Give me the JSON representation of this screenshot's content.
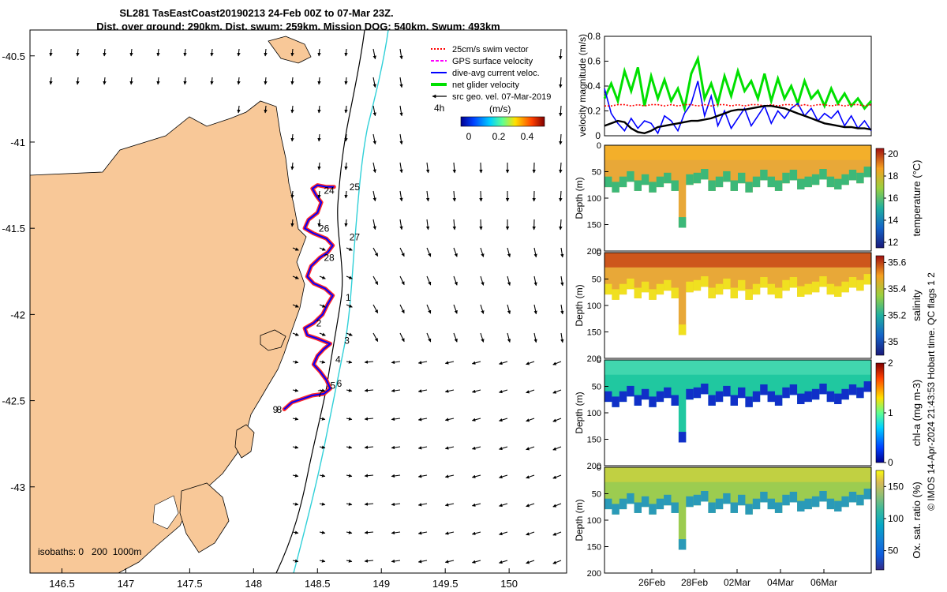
{
  "title": {
    "line1": "SL281 TasEastCoast20190213 24-Feb 00Z to 07-Mar 23Z.",
    "line2": "Dist. over ground: 290km. Dist. swum: 259km. Mission DOG: 540km. Swum: 493km"
  },
  "footer_credit": "© IMOS 14-Apr-2024 21:43:53 Hobart time. QC flags 1  2",
  "colors": {
    "land": "#f8c898",
    "swim_vector": "#ff0000",
    "gps_velocity": "#ff00ff",
    "dive_avg": "#0000ff",
    "net_glider": "#00e000",
    "src_geo": "#000000",
    "isobath_200": "#000000",
    "isobath_1000": "#30d0d8",
    "track": "#ff2a2a"
  },
  "chart_data": [
    {
      "type": "map",
      "title": "SL281 TasEastCoast20190213 24-Feb 00Z to 07-Mar 23Z.",
      "xlim": [
        146.25,
        150.45
      ],
      "ylim": [
        -43.5,
        -40.35
      ],
      "xticks": [
        146.5,
        147,
        147.5,
        148,
        148.5,
        149,
        149.5,
        150
      ],
      "xtick_labels": [
        "146.5",
        "147",
        "147.5",
        "148",
        "148.5",
        "149",
        "149.5",
        "150"
      ],
      "yticks": [
        -40.5,
        -41,
        -41.5,
        -42,
        -42.5,
        -43
      ],
      "ytick_labels": [
        "-40.5",
        "-41",
        "-41.5",
        "-42",
        "-42.5",
        "-43"
      ],
      "legend": [
        {
          "label": "25cm/s swim vector",
          "color": "#ff0000",
          "style": "dotted"
        },
        {
          "label": "GPS surface velocity",
          "color": "#ff00ff",
          "style": "dashed"
        },
        {
          "label": "dive-avg current veloc.",
          "color": "#0000ff",
          "style": "solid"
        },
        {
          "label": "net glider velocity",
          "color": "#00e000",
          "style": "thick"
        },
        {
          "label": "src geo. vel. 07-Mar-2019",
          "color": "#000000",
          "style": "arrow"
        }
      ],
      "time_label": "4h",
      "colorbar": {
        "title": "(m/s)",
        "ticks": [
          "0",
          "0.2",
          "0.4"
        ],
        "range": [
          -0.05,
          0.55
        ]
      },
      "isobaths_label": "isobaths: 0   200  1000m",
      "day_labels": [
        {
          "label": "25",
          "lon": 148.75,
          "lat": -41.28
        },
        {
          "label": "24",
          "lon": 148.55,
          "lat": -41.3
        },
        {
          "label": "26",
          "lon": 148.51,
          "lat": -41.52
        },
        {
          "label": "27",
          "lon": 148.75,
          "lat": -41.57
        },
        {
          "label": "28",
          "lon": 148.55,
          "lat": -41.69
        },
        {
          "label": "1",
          "lon": 148.72,
          "lat": -41.92
        },
        {
          "label": "2",
          "lon": 148.49,
          "lat": -42.07
        },
        {
          "label": "3",
          "lon": 148.71,
          "lat": -42.17
        },
        {
          "label": "4",
          "lon": 148.64,
          "lat": -42.28
        },
        {
          "label": "5",
          "lon": 148.6,
          "lat": -42.43
        },
        {
          "label": "6",
          "lon": 148.65,
          "lat": -42.42
        },
        {
          "label": "7",
          "lon": 148.5,
          "lat": -42.48
        },
        {
          "label": "8",
          "lon": 148.18,
          "lat": -42.57
        },
        {
          "label": "9",
          "lon": 148.15,
          "lat": -42.57
        }
      ],
      "track": [
        [
          148.24,
          -42.55
        ],
        [
          148.3,
          -42.51
        ],
        [
          148.38,
          -42.49
        ],
        [
          148.46,
          -42.47
        ],
        [
          148.55,
          -42.46
        ],
        [
          148.6,
          -42.43
        ],
        [
          148.57,
          -42.38
        ],
        [
          148.52,
          -42.33
        ],
        [
          148.47,
          -42.29
        ],
        [
          148.5,
          -42.24
        ],
        [
          148.55,
          -42.2
        ],
        [
          148.6,
          -42.17
        ],
        [
          148.5,
          -42.14
        ],
        [
          148.42,
          -42.12
        ],
        [
          148.4,
          -42.08
        ],
        [
          148.47,
          -42.05
        ],
        [
          148.54,
          -42.0
        ],
        [
          148.58,
          -41.94
        ],
        [
          148.62,
          -41.89
        ],
        [
          148.56,
          -41.85
        ],
        [
          148.47,
          -41.82
        ],
        [
          148.42,
          -41.78
        ],
        [
          148.45,
          -41.72
        ],
        [
          148.52,
          -41.67
        ],
        [
          148.58,
          -41.64
        ],
        [
          148.62,
          -41.6
        ],
        [
          148.57,
          -41.56
        ],
        [
          148.47,
          -41.53
        ],
        [
          148.4,
          -41.5
        ],
        [
          148.43,
          -41.45
        ],
        [
          148.5,
          -41.41
        ],
        [
          148.53,
          -41.35
        ],
        [
          148.49,
          -41.31
        ],
        [
          148.46,
          -41.27
        ],
        [
          148.5,
          -41.25
        ],
        [
          148.57,
          -41.26
        ],
        [
          148.63,
          -41.26
        ]
      ]
    },
    {
      "type": "line",
      "ylabel": "velocity magnitude (m/s)",
      "ylim": [
        0,
        0.8
      ],
      "yticks": [
        0,
        0.2,
        0.4,
        0.6,
        0.8
      ],
      "ytick_labels": [
        "0",
        "0.2",
        "0.4",
        "0.6",
        "0.8"
      ],
      "xlim_days": [
        0,
        13
      ],
      "series": [
        {
          "name": "net glider velocity",
          "color": "#00e000",
          "values": [
            0.3,
            0.42,
            0.28,
            0.52,
            0.36,
            0.55,
            0.24,
            0.48,
            0.3,
            0.45,
            0.28,
            0.38,
            0.22,
            0.5,
            0.62,
            0.3,
            0.42,
            0.26,
            0.48,
            0.32,
            0.52,
            0.36,
            0.44,
            0.3,
            0.5,
            0.28,
            0.46,
            0.3,
            0.4,
            0.26,
            0.44,
            0.3,
            0.36,
            0.24,
            0.38,
            0.26,
            0.34,
            0.24,
            0.3,
            0.22,
            0.28
          ]
        },
        {
          "name": "dive-avg current veloc.",
          "color": "#0000ff",
          "values": [
            0.38,
            0.18,
            0.1,
            0.04,
            0.14,
            0.06,
            0.12,
            0.1,
            0.02,
            0.16,
            0.12,
            0.04,
            0.18,
            0.26,
            0.44,
            0.16,
            0.32,
            0.08,
            0.2,
            0.06,
            0.14,
            0.22,
            0.08,
            0.16,
            0.24,
            0.1,
            0.2,
            0.14,
            0.22,
            0.26,
            0.16,
            0.22,
            0.12,
            0.18,
            0.14,
            0.2,
            0.08,
            0.16,
            0.06,
            0.12,
            0.04
          ]
        },
        {
          "name": "swim vector",
          "color": "#ff0000",
          "values": [
            0.24,
            0.24,
            0.25,
            0.25,
            0.24,
            0.25,
            0.24,
            0.25,
            0.25,
            0.24,
            0.25,
            0.24,
            0.25,
            0.25,
            0.24,
            0.25,
            0.24,
            0.25,
            0.25,
            0.24,
            0.25,
            0.24,
            0.25,
            0.25,
            0.24,
            0.25,
            0.24,
            0.25,
            0.25,
            0.24,
            0.25,
            0.24,
            0.25,
            0.25,
            0.24,
            0.25,
            0.24,
            0.25,
            0.25,
            0.24,
            0.25
          ]
        },
        {
          "name": "src geo. vel.",
          "color": "#000000",
          "values": [
            0.08,
            0.1,
            0.12,
            0.11,
            0.06,
            0.03,
            0.02,
            0.04,
            0.07,
            0.08,
            0.09,
            0.1,
            0.11,
            0.12,
            0.12,
            0.13,
            0.14,
            0.16,
            0.18,
            0.2,
            0.21,
            0.21,
            0.22,
            0.23,
            0.24,
            0.24,
            0.23,
            0.22,
            0.2,
            0.18,
            0.16,
            0.14,
            0.12,
            0.1,
            0.09,
            0.08,
            0.07,
            0.07,
            0.06,
            0.06,
            0.05
          ]
        }
      ]
    },
    {
      "type": "heatmap",
      "ylabel": "Depth (m)",
      "cblabel": "temperature (°C)",
      "ylim": [
        0,
        200
      ],
      "yticks": [
        "0",
        "50",
        "100",
        "150",
        "200"
      ],
      "cbticks": [
        "12",
        "14",
        "16",
        "18",
        "20"
      ],
      "crange": [
        11.5,
        20.5
      ],
      "colormap": "parula"
    },
    {
      "type": "heatmap",
      "ylabel": "Depth (m)",
      "cblabel": "salinity",
      "ylim": [
        0,
        200
      ],
      "yticks": [
        "0",
        "50",
        "100",
        "150",
        "200"
      ],
      "cbticks": [
        "35",
        "35.2",
        "35.4",
        "35.6"
      ],
      "crange": [
        34.9,
        35.65
      ],
      "colormap": "parula"
    },
    {
      "type": "heatmap",
      "ylabel": "Depth (m)",
      "cblabel": "chl-a (mg m-3)",
      "ylim": [
        0,
        200
      ],
      "yticks": [
        "0",
        "50",
        "100",
        "150",
        "200"
      ],
      "cbticks": [
        "0",
        "1",
        "2"
      ],
      "crange": [
        0,
        2
      ],
      "colormap": "jet"
    },
    {
      "type": "heatmap",
      "ylabel": "Depth (m)",
      "cblabel": "Ox. sat. ratio (%)",
      "ylim": [
        0,
        200
      ],
      "yticks": [
        "0",
        "50",
        "100",
        "150",
        "200"
      ],
      "cbticks": [
        "50",
        "100",
        "150"
      ],
      "crange": [
        20,
        175
      ],
      "colormap": "parula",
      "xticks": [
        "26Feb",
        "28Feb",
        "02Mar",
        "04Mar",
        "06Mar"
      ]
    }
  ]
}
